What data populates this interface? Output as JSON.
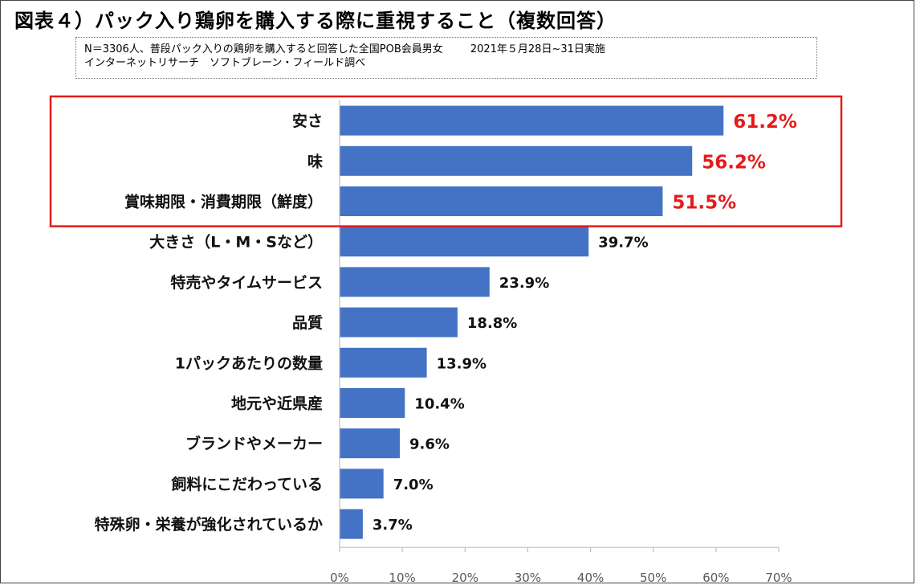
{
  "title": "図表４）パック入り鶏卵を購入する際に重視すること（複数回答）",
  "note": {
    "line1": "N＝3306人、普段パック入りの鶏卵を購入すると回答した全国POB会員男女",
    "date": "2021年５月28日~31日実施",
    "line2": "インターネットリサーチ　ソフトブレーン・フィールド調べ"
  },
  "colors": {
    "bar": "#4472c4",
    "highlight_text": "#e51b1b",
    "highlight_box": "#e51b1b"
  },
  "chart_data": {
    "type": "bar",
    "orientation": "horizontal",
    "categories": [
      "安さ",
      "味",
      "賞味期限・消費期限（鮮度）",
      "大きさ（L・M・Sなど）",
      "特売やタイムサービス",
      "品質",
      "1パックあたりの数量",
      "地元や近県産",
      "ブランドやメーカー",
      "飼料にこだわっている",
      "特殊卵・栄養が強化されているか"
    ],
    "values": [
      61.2,
      56.2,
      51.5,
      39.7,
      23.9,
      18.8,
      13.9,
      10.4,
      9.6,
      7.0,
      3.7
    ],
    "value_labels": [
      "61.2%",
      "56.2%",
      "51.5%",
      "39.7%",
      "23.9%",
      "18.8%",
      "13.9%",
      "10.4%",
      "9.6%",
      "7.0%",
      "3.7%"
    ],
    "highlighted_count": 3,
    "xlim": [
      0,
      70
    ],
    "xticks": [
      0,
      10,
      20,
      30,
      40,
      50,
      60,
      70
    ],
    "xtick_labels": [
      "0%",
      "10%",
      "20%",
      "30%",
      "40%",
      "50%",
      "60%",
      "70%"
    ],
    "grid": false,
    "legend": "none"
  }
}
